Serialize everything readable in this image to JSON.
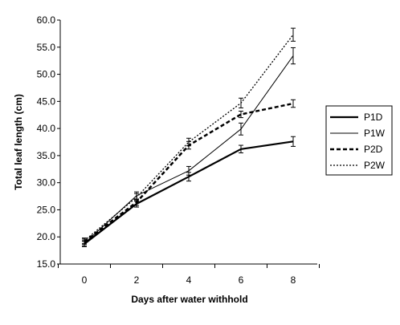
{
  "chart_data": {
    "type": "line",
    "title": "",
    "xlabel": "Days after water withhold",
    "ylabel": "Total leaf length (cm)",
    "x": [
      0,
      2,
      4,
      6,
      8
    ],
    "x_tick_labels": [
      "0",
      "2",
      "4",
      "6",
      "8"
    ],
    "ylim": [
      15.0,
      60.0
    ],
    "y_ticks": [
      15.0,
      20.0,
      25.0,
      30.0,
      35.0,
      40.0,
      45.0,
      50.0,
      55.0,
      60.0
    ],
    "y_tick_labels": [
      "15.0",
      "20.0",
      "25.0",
      "30.0",
      "35.0",
      "40.0",
      "45.0",
      "50.0",
      "55.0",
      "60.0"
    ],
    "grid": false,
    "legend_position": "right",
    "series": [
      {
        "name": "P1D",
        "style": "solid-thick",
        "color": "#000000",
        "values": [
          18.7,
          26.1,
          31.1,
          36.2,
          37.6
        ],
        "errors": [
          0.5,
          0.6,
          0.8,
          0.7,
          0.9
        ]
      },
      {
        "name": "P1W",
        "style": "solid-thin",
        "color": "#000000",
        "values": [
          18.8,
          27.6,
          32.2,
          39.9,
          53.4
        ],
        "errors": [
          0.5,
          0.7,
          0.8,
          1.1,
          1.5
        ]
      },
      {
        "name": "P2D",
        "style": "dashed-thick",
        "color": "#000000",
        "values": [
          19.1,
          26.4,
          36.9,
          42.6,
          44.6
        ],
        "errors": [
          0.5,
          0.6,
          0.7,
          0.6,
          0.7
        ]
      },
      {
        "name": "P2W",
        "style": "dotted",
        "color": "#000000",
        "values": [
          19.3,
          27.3,
          37.5,
          44.7,
          57.3
        ],
        "errors": [
          0.5,
          0.7,
          0.7,
          0.9,
          1.2
        ]
      }
    ]
  }
}
